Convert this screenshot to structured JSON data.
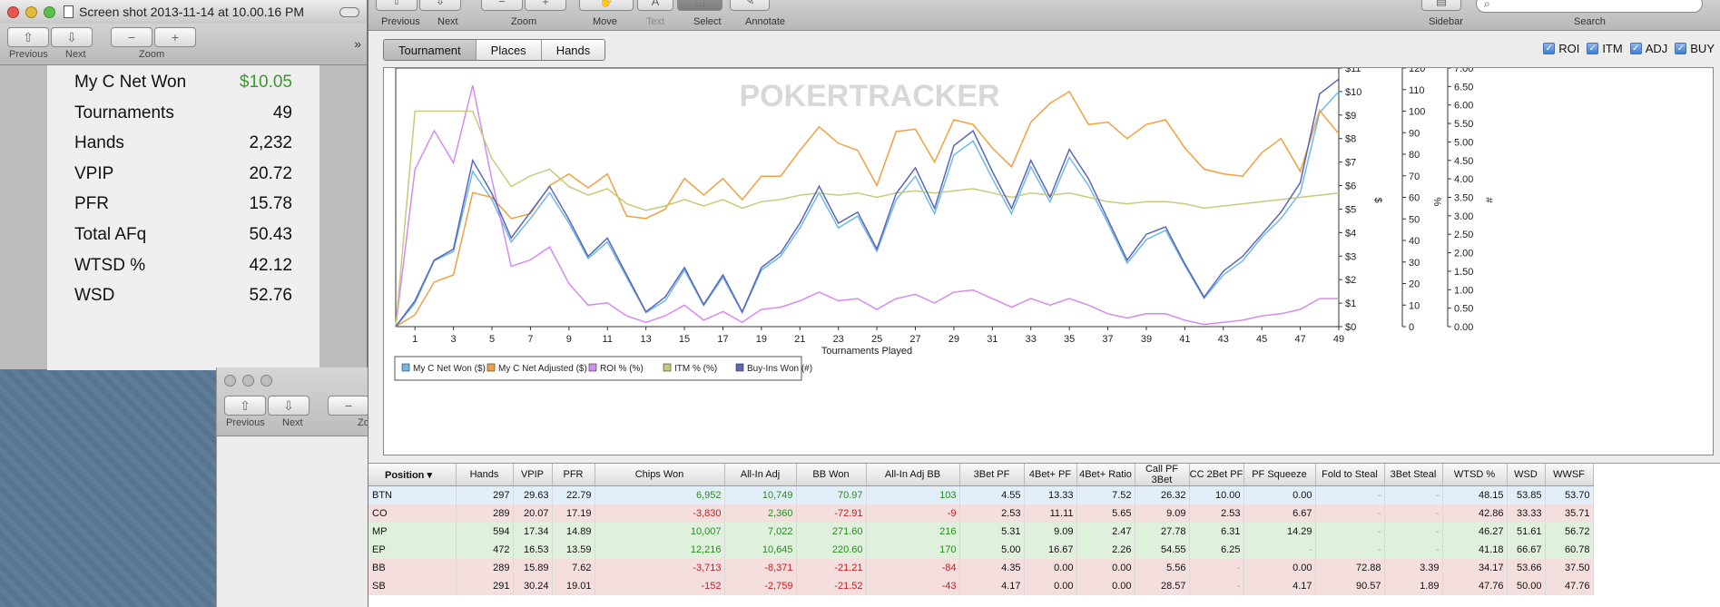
{
  "preview_window": {
    "title": "Screen shot 2013-11-14 at 10.00.16 PM",
    "nav": {
      "previous": "Previous",
      "next": "Next",
      "zoom": "Zoom"
    },
    "stats": [
      {
        "label": "My C Net Won",
        "value": "$10.05"
      },
      {
        "label": "Tournaments",
        "value": "49"
      },
      {
        "label": "Hands",
        "value": "2,232"
      },
      {
        "label": "VPIP",
        "value": "20.72"
      },
      {
        "label": "PFR",
        "value": "15.78"
      },
      {
        "label": "Total AFq",
        "value": "50.43"
      },
      {
        "label": "WTSD %",
        "value": "42.12"
      },
      {
        "label": "WSD",
        "value": "52.76"
      }
    ]
  },
  "second_window": {
    "previous": "Previous",
    "next": "Next",
    "zoom_partial": "Zo"
  },
  "toolbar": {
    "previous": "Previous",
    "next": "Next",
    "zoom": "Zoom",
    "move": "Move",
    "text": "Text",
    "select": "Select",
    "annotate": "Annotate",
    "sidebar": "Sidebar",
    "search": "Search"
  },
  "tabs": [
    "Tournament",
    "Places",
    "Hands"
  ],
  "toggles": [
    "ROI",
    "ITM",
    "ADJ",
    "BUY"
  ],
  "colors": {
    "net_won": "#6fb9e8",
    "adjusted": "#f0a040",
    "roi": "#d58af0",
    "itm": "#c9c97a",
    "buyins": "#5a66b8",
    "watermark": "#d8d8d8"
  },
  "chart_data": {
    "type": "line",
    "watermark": "POKERTRACKER",
    "xlabel": "Tournaments Played",
    "x_ticks": [
      "1",
      "3",
      "5",
      "7",
      "9",
      "11",
      "13",
      "15",
      "17",
      "19",
      "21",
      "23",
      "25",
      "27",
      "29",
      "31",
      "33",
      "35",
      "37",
      "39",
      "41",
      "43",
      "45",
      "47",
      "49"
    ],
    "y_axes": [
      {
        "unit": "$",
        "ticks": [
          "$0",
          "$1",
          "$2",
          "$3",
          "$4",
          "$5",
          "$6",
          "$7",
          "$8",
          "$9",
          "$10",
          "$11"
        ],
        "range": [
          0,
          11
        ]
      },
      {
        "unit": "%",
        "ticks": [
          "0",
          "10",
          "20",
          "30",
          "40",
          "50",
          "60",
          "70",
          "80",
          "90",
          "100",
          "110",
          "120"
        ],
        "range": [
          0,
          120
        ]
      },
      {
        "unit": "#",
        "ticks": [
          "0.00",
          "0.50",
          "1.00",
          "1.50",
          "2.00",
          "2.50",
          "3.00",
          "3.50",
          "4.00",
          "4.50",
          "5.00",
          "5.50",
          "6.00",
          "6.50",
          "7.00"
        ],
        "range": [
          0,
          7
        ]
      }
    ],
    "x": [
      0,
      1,
      2,
      3,
      4,
      5,
      6,
      7,
      8,
      9,
      10,
      11,
      12,
      13,
      14,
      15,
      16,
      17,
      18,
      19,
      20,
      21,
      22,
      23,
      24,
      25,
      26,
      27,
      28,
      29,
      30,
      31,
      32,
      33,
      34,
      35,
      36,
      37,
      38,
      39,
      40,
      41,
      42,
      43,
      44,
      45,
      46,
      47,
      48,
      49
    ],
    "series": [
      {
        "name": "My C Net Won ($)",
        "axis": "$",
        "values": [
          0,
          1,
          2.8,
          3.2,
          6.6,
          5.4,
          3.6,
          4.6,
          5.7,
          4.4,
          2.9,
          3.6,
          2.1,
          0.6,
          1.1,
          2.4,
          0.9,
          2.1,
          0.6,
          2.4,
          3.0,
          4.2,
          5.7,
          4.2,
          4.7,
          3.2,
          5.4,
          6.4,
          4.8,
          7.3,
          7.9,
          6.3,
          4.8,
          6.8,
          5.3,
          7.2,
          6.0,
          4.4,
          2.7,
          3.7,
          4.1,
          2.6,
          1.2,
          2.2,
          2.8,
          3.8,
          4.6,
          5.7,
          9.1,
          10.0
        ]
      },
      {
        "name": "My C Net Adjusted ($)",
        "axis": "$",
        "values": [
          0,
          0.5,
          1.9,
          2.2,
          5.7,
          5.5,
          4.6,
          4.8,
          6.0,
          6.5,
          5.9,
          6.5,
          4.7,
          4.6,
          5.0,
          6.3,
          5.6,
          6.3,
          5.4,
          6.4,
          6.4,
          7.5,
          8.5,
          7.8,
          7.5,
          6.0,
          8.3,
          8.4,
          7.0,
          8.8,
          8.6,
          7.6,
          6.8,
          8.7,
          9.5,
          10.0,
          8.6,
          8.7,
          8.0,
          8.6,
          8.8,
          7.6,
          6.7,
          6.5,
          6.4,
          7.4,
          8.0,
          6.6,
          9.2,
          8.2
        ]
      },
      {
        "name": "ROI % (%)",
        "axis": "%",
        "values": [
          0,
          73,
          91,
          76,
          112,
          68,
          28,
          31,
          37,
          20,
          10,
          11,
          5,
          2,
          5,
          10,
          3,
          7,
          2,
          8,
          9,
          12,
          16,
          12,
          13,
          8,
          13,
          15,
          11,
          16,
          17,
          13,
          9,
          13,
          10,
          13,
          10,
          6,
          4,
          6,
          6,
          3,
          1,
          2,
          3,
          5,
          6,
          8,
          13,
          13
        ]
      },
      {
        "name": "ITM % (%)",
        "axis": "%",
        "values": [
          0,
          100,
          100,
          100,
          100,
          78,
          65,
          70,
          73,
          65,
          61,
          64,
          57,
          54,
          56,
          59,
          56,
          59,
          55,
          58,
          59,
          61,
          62,
          61,
          62,
          60,
          62,
          63,
          62,
          63,
          64,
          62,
          60,
          62,
          61,
          62,
          60,
          58,
          57,
          58,
          58,
          57,
          55,
          56,
          57,
          58,
          59,
          60,
          61,
          62
        ]
      },
      {
        "name": "Buy-Ins Won (#)",
        "axis": "#",
        "values": [
          0,
          0.7,
          1.8,
          2.1,
          4.5,
          3.6,
          2.4,
          3.1,
          3.8,
          2.9,
          1.9,
          2.4,
          1.4,
          0.4,
          0.8,
          1.6,
          0.6,
          1.4,
          0.4,
          1.6,
          2.0,
          2.8,
          3.8,
          2.8,
          3.1,
          2.1,
          3.6,
          4.3,
          3.2,
          4.9,
          5.3,
          4.2,
          3.2,
          4.5,
          3.5,
          4.8,
          4.0,
          2.9,
          1.8,
          2.5,
          2.7,
          1.7,
          0.8,
          1.5,
          1.9,
          2.5,
          3.1,
          3.9,
          6.3,
          6.7
        ]
      }
    ]
  },
  "table": {
    "columns": [
      "Position",
      "Hands",
      "VPIP",
      "PFR",
      "Chips Won",
      "All-In Adj",
      "BB Won",
      "All-In Adj BB",
      "3Bet PF",
      "4Bet+ PF",
      "4Bet+ Ratio",
      "Call PF 3Bet",
      "CC 2Bet PF",
      "PF Squeeze",
      "Fold to Steal",
      "3Bet Steal",
      "WTSD %",
      "WSD",
      "WWSF"
    ],
    "rows": [
      {
        "tone": "blue",
        "cells": [
          "BTN",
          "297",
          "29.63",
          "22.79",
          "6,952",
          "10,749",
          "70.97",
          "103",
          "4.55",
          "13.33",
          "7.52",
          "26.32",
          "10.00",
          "0.00",
          "-",
          "-",
          "48.15",
          "53.85",
          "53.70"
        ]
      },
      {
        "tone": "red",
        "cells": [
          "CO",
          "289",
          "20.07",
          "17.19",
          "-3,830",
          "2,360",
          "-72.91",
          "-9",
          "2.53",
          "11.11",
          "5.65",
          "9.09",
          "2.53",
          "6.67",
          "-",
          "-",
          "42.86",
          "33.33",
          "35.71"
        ]
      },
      {
        "tone": "green",
        "cells": [
          "MP",
          "594",
          "17.34",
          "14.89",
          "10,007",
          "7,022",
          "271.60",
          "216",
          "5.31",
          "9.09",
          "2.47",
          "27.78",
          "6.31",
          "14.29",
          "-",
          "-",
          "46.27",
          "51.61",
          "56.72"
        ]
      },
      {
        "tone": "green",
        "cells": [
          "EP",
          "472",
          "16.53",
          "13.59",
          "12,216",
          "10,645",
          "220.60",
          "170",
          "5.00",
          "16.67",
          "2.26",
          "54.55",
          "6.25",
          "-",
          "-",
          "-",
          "41.18",
          "66.67",
          "60.78"
        ]
      },
      {
        "tone": "red",
        "cells": [
          "BB",
          "289",
          "15.89",
          "7.62",
          "-3,713",
          "-8,371",
          "-21.21",
          "-84",
          "4.35",
          "0.00",
          "0.00",
          "5.56",
          "-",
          "0.00",
          "72.88",
          "3.39",
          "34.17",
          "53.66",
          "37.50"
        ]
      },
      {
        "tone": "red",
        "cells": [
          "SB",
          "291",
          "30.24",
          "19.01",
          "-152",
          "-2,759",
          "-21.52",
          "-43",
          "4.17",
          "0.00",
          "0.00",
          "28.57",
          "-",
          "4.17",
          "90.57",
          "1.89",
          "47.76",
          "50.00",
          "47.76"
        ]
      }
    ]
  }
}
